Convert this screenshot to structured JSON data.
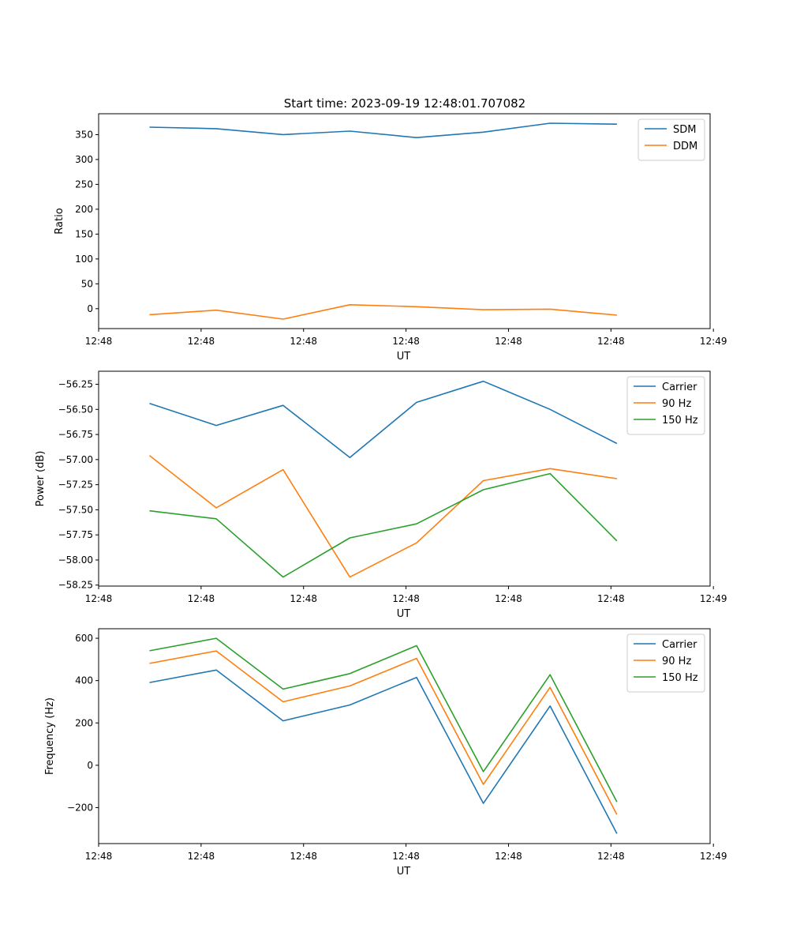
{
  "figure_title": "Start time: 2023-09-19 12:48:01.707082",
  "colors": {
    "blue": "#1f77b4",
    "orange": "#ff7f0e",
    "green": "#2ca02c"
  },
  "chart_data": [
    {
      "type": "line",
      "title": "Start time: 2023-09-19 12:48:01.707082",
      "xlabel": "UT",
      "ylabel": "Ratio",
      "xlim": [
        0,
        9.25
      ],
      "xticks": [
        0,
        1.55,
        3.1,
        4.65,
        6.2,
        7.75,
        9.3
      ],
      "xtick_labels": [
        "12:48",
        "12:48",
        "12:48",
        "12:48",
        "12:48",
        "12:48",
        "12:49"
      ],
      "ylim": [
        -40,
        392
      ],
      "yticks": [
        0,
        50,
        100,
        150,
        200,
        250,
        300,
        350
      ],
      "ytick_labels": [
        "0",
        "50",
        "100",
        "150",
        "200",
        "250",
        "300",
        "350"
      ],
      "legend_position": "top-right",
      "x": [
        0.77,
        1.78,
        2.79,
        3.8,
        4.81,
        5.82,
        6.83,
        7.84
      ],
      "series": [
        {
          "name": "SDM",
          "color": "#1f77b4",
          "values": [
            365,
            362,
            350,
            357,
            344,
            355,
            373,
            371
          ]
        },
        {
          "name": "DDM",
          "color": "#ff7f0e",
          "values": [
            -12,
            -3,
            -21,
            8,
            4,
            -2,
            -1,
            -13
          ]
        }
      ]
    },
    {
      "type": "line",
      "title": "",
      "xlabel": "UT",
      "ylabel": "Power (dB)",
      "xlim": [
        0,
        9.25
      ],
      "xticks": [
        0,
        1.55,
        3.1,
        4.65,
        6.2,
        7.75,
        9.3
      ],
      "xtick_labels": [
        "12:48",
        "12:48",
        "12:48",
        "12:48",
        "12:48",
        "12:48",
        "12:49"
      ],
      "ylim": [
        -58.26,
        -56.12
      ],
      "yticks": [
        -58.25,
        -58.0,
        -57.75,
        -57.5,
        -57.25,
        -57.0,
        -56.75,
        -56.5,
        -56.25
      ],
      "ytick_labels": [
        "−58.25",
        "−58.00",
        "−57.75",
        "−57.50",
        "−57.25",
        "−57.00",
        "−56.75",
        "−56.50",
        "−56.25"
      ],
      "legend_position": "top-right",
      "x": [
        0.77,
        1.78,
        2.79,
        3.8,
        4.81,
        5.82,
        6.83,
        7.84
      ],
      "series": [
        {
          "name": "Carrier",
          "color": "#1f77b4",
          "values": [
            -56.44,
            -56.66,
            -56.46,
            -56.98,
            -56.43,
            -56.22,
            -56.5,
            -56.84
          ]
        },
        {
          "name": "90 Hz",
          "color": "#ff7f0e",
          "values": [
            -56.96,
            -57.48,
            -57.1,
            -58.17,
            -57.83,
            -57.21,
            -57.09,
            -57.19
          ]
        },
        {
          "name": "150 Hz",
          "color": "#2ca02c",
          "values": [
            -57.51,
            -57.59,
            -58.17,
            -57.78,
            -57.64,
            -57.3,
            -57.14,
            -57.81
          ]
        }
      ]
    },
    {
      "type": "line",
      "title": "",
      "xlabel": "UT",
      "ylabel": "Frequency (Hz)",
      "xlim": [
        0,
        9.25
      ],
      "xticks": [
        0,
        1.55,
        3.1,
        4.65,
        6.2,
        7.75,
        9.3
      ],
      "xtick_labels": [
        "12:48",
        "12:48",
        "12:48",
        "12:48",
        "12:48",
        "12:48",
        "12:49"
      ],
      "ylim": [
        -370,
        645
      ],
      "yticks": [
        -200,
        0,
        200,
        400,
        600
      ],
      "ytick_labels": [
        "−200",
        "0",
        "200",
        "400",
        "600"
      ],
      "legend_position": "top-right",
      "x": [
        0.77,
        1.78,
        2.79,
        3.8,
        4.81,
        5.82,
        6.83,
        7.84
      ],
      "series": [
        {
          "name": "Carrier",
          "color": "#1f77b4",
          "values": [
            391,
            450,
            210,
            285,
            415,
            -180,
            280,
            -323
          ]
        },
        {
          "name": "90 Hz",
          "color": "#ff7f0e",
          "values": [
            481,
            540,
            300,
            375,
            505,
            -90,
            368,
            -233
          ]
        },
        {
          "name": "150 Hz",
          "color": "#2ca02c",
          "values": [
            541,
            600,
            360,
            433,
            565,
            -30,
            428,
            -173
          ]
        }
      ]
    }
  ]
}
